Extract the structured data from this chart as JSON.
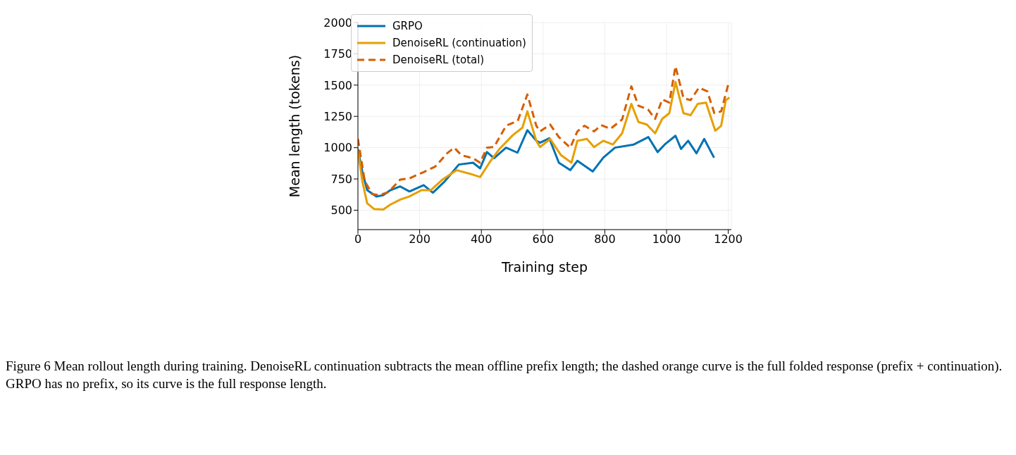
{
  "chart_data": {
    "type": "line",
    "xlabel": "Training step",
    "ylabel": "Mean length (tokens)",
    "xlim": [
      0,
      1210
    ],
    "xticks": [
      0,
      200,
      400,
      600,
      800,
      1000,
      1200
    ],
    "ylim": [
      345,
      2000
    ],
    "yticks": [
      500,
      750,
      1000,
      1250,
      1500,
      1750,
      2000
    ],
    "grid": true,
    "legend": "top left",
    "marker": "none",
    "annotations": [
      "Figure 6  Mean rollout length during training. DenoiseRL continuation subtracts the mean offline prefix length; the dashed orange curve is the full folded response (prefix + continuation). GRPO has no prefix, so its curve is the full response length."
    ],
    "series": [
      {
        "name": "GRPO",
        "color": "#0072b2",
        "line_style": "solid",
        "x": [
          0,
          14,
          30,
          60,
          82,
          105,
          137,
          167,
          213,
          243,
          281,
          327,
          373,
          396,
          418,
          441,
          480,
          517,
          549,
          578,
          590,
          620,
          651,
          688,
          711,
          761,
          795,
          833,
          894,
          941,
          971,
          994,
          1029,
          1047,
          1070,
          1097,
          1122,
          1154
        ],
        "values": [
          990,
          810,
          660,
          610,
          620,
          660,
          690,
          650,
          700,
          640,
          730,
          865,
          880,
          835,
          965,
          915,
          1000,
          960,
          1140,
          1055,
          1040,
          1075,
          880,
          820,
          895,
          810,
          920,
          1000,
          1025,
          1085,
          965,
          1025,
          1095,
          990,
          1055,
          955,
          1070,
          920
        ]
      },
      {
        "name": "DenoiseRL (continuation)",
        "color": "#e69f00",
        "line_style": "solid",
        "x": [
          0,
          14,
          30,
          52,
          82,
          105,
          137,
          167,
          206,
          236,
          274,
          320,
          365,
          396,
          426,
          457,
          502,
          533,
          549,
          578,
          590,
          623,
          658,
          692,
          711,
          742,
          765,
          795,
          826,
          856,
          886,
          909,
          936,
          963,
          986,
          1009,
          1029,
          1055,
          1078,
          1101,
          1128,
          1158,
          1177,
          1192,
          1204
        ],
        "values": [
          980,
          735,
          555,
          510,
          505,
          545,
          585,
          610,
          660,
          660,
          745,
          820,
          790,
          765,
          880,
          985,
          1100,
          1160,
          1290,
          1055,
          1005,
          1070,
          940,
          880,
          1055,
          1070,
          1005,
          1055,
          1025,
          1115,
          1350,
          1205,
          1185,
          1115,
          1230,
          1275,
          1525,
          1275,
          1260,
          1350,
          1360,
          1135,
          1175,
          1380,
          1400
        ]
      },
      {
        "name": "DenoiseRL (total)",
        "color": "#d55e00",
        "line_style": "dashed",
        "x": [
          0,
          22,
          45,
          68,
          99,
          137,
          167,
          213,
          251,
          289,
          312,
          335,
          373,
          396,
          418,
          441,
          480,
          518,
          549,
          578,
          590,
          623,
          651,
          688,
          711,
          734,
          765,
          788,
          818,
          856,
          886,
          909,
          940,
          963,
          986,
          1009,
          1029,
          1055,
          1078,
          1105,
          1132,
          1155,
          1177,
          1200
        ],
        "values": [
          1070,
          735,
          630,
          620,
          645,
          745,
          755,
          805,
          850,
          955,
          1000,
          940,
          915,
          880,
          1000,
          1005,
          1175,
          1215,
          1425,
          1175,
          1130,
          1185,
          1085,
          1000,
          1130,
          1175,
          1130,
          1180,
          1150,
          1225,
          1490,
          1335,
          1305,
          1230,
          1385,
          1360,
          1650,
          1395,
          1380,
          1480,
          1450,
          1275,
          1290,
          1505
        ]
      }
    ]
  }
}
